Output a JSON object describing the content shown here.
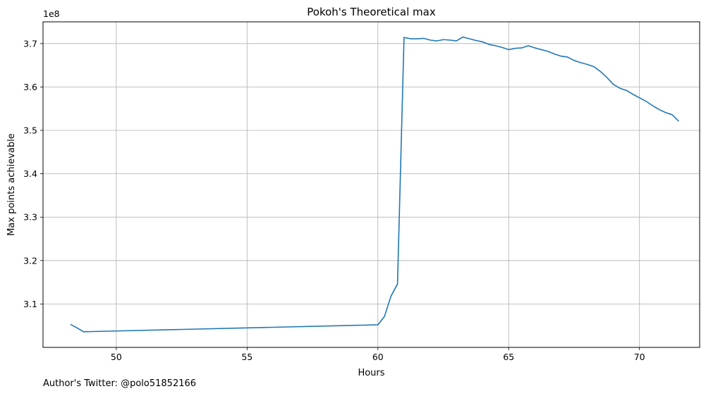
{
  "chart_data": {
    "type": "line",
    "title": "Pokoh's Theoretical max",
    "xlabel": "Hours",
    "ylabel": "Max points achievable",
    "y_offset_label": "1e8",
    "xlim": [
      47.2,
      72.3
    ],
    "ylim": [
      3.0,
      3.75
    ],
    "xticks": [
      50,
      55,
      60,
      65,
      70
    ],
    "xtick_labels": [
      "50",
      "55",
      "60",
      "65",
      "70"
    ],
    "yticks": [
      3.1,
      3.2,
      3.3,
      3.4,
      3.5,
      3.6,
      3.7
    ],
    "ytick_labels": [
      "3.1",
      "3.2",
      "3.3",
      "3.4",
      "3.5",
      "3.6",
      "3.7"
    ],
    "grid": true,
    "line_color": "#1f77b4",
    "series": [
      {
        "x": [
          48.25,
          48.5,
          48.75,
          60.0,
          60.25,
          60.5,
          60.75,
          61.0,
          61.25,
          61.5,
          61.75,
          62.0,
          62.25,
          62.5,
          62.75,
          63.0,
          63.25,
          63.5,
          63.75,
          64.0,
          64.25,
          64.5,
          64.75,
          65.0,
          65.25,
          65.5,
          65.75,
          66.0,
          66.25,
          66.5,
          66.75,
          67.0,
          67.25,
          67.5,
          67.75,
          68.0,
          68.25,
          68.5,
          68.75,
          69.0,
          69.25,
          69.5,
          69.75,
          70.0,
          70.25,
          70.5,
          70.75,
          71.0,
          71.25,
          71.5
        ],
        "y": [
          3.053,
          3.045,
          3.036,
          3.052,
          3.071,
          3.118,
          3.146,
          3.714,
          3.711,
          3.711,
          3.712,
          3.708,
          3.706,
          3.709,
          3.708,
          3.706,
          3.715,
          3.711,
          3.707,
          3.704,
          3.698,
          3.695,
          3.691,
          3.686,
          3.689,
          3.69,
          3.695,
          3.69,
          3.686,
          3.682,
          3.676,
          3.671,
          3.669,
          3.661,
          3.656,
          3.652,
          3.647,
          3.636,
          3.622,
          3.606,
          3.597,
          3.592,
          3.583,
          3.575,
          3.567,
          3.557,
          3.548,
          3.541,
          3.536,
          3.521
        ]
      }
    ]
  },
  "footnote": "Author's Twitter: @polo51852166"
}
